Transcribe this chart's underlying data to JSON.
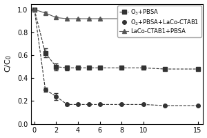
{
  "title": "",
  "xlabel": "",
  "ylabel": "C/C$_0$",
  "xlim": [
    -0.3,
    15.5
  ],
  "ylim": [
    0.0,
    1.05
  ],
  "yticks": [
    0.0,
    0.2,
    0.4,
    0.6,
    0.8,
    1.0
  ],
  "xticks": [
    0,
    2,
    4,
    6,
    8,
    10,
    15
  ],
  "series": [
    {
      "label": "O$_3$+PBSA",
      "x": [
        0,
        1,
        2,
        3,
        4,
        5,
        6,
        8,
        10,
        12,
        15
      ],
      "y": [
        1.0,
        0.62,
        0.5,
        0.49,
        0.49,
        0.49,
        0.49,
        0.49,
        0.49,
        0.48,
        0.48
      ],
      "yerr": [
        0.0,
        0.04,
        0.03,
        0.02,
        0.0,
        0.0,
        0.0,
        0.0,
        0.0,
        0.0,
        0.0
      ],
      "marker": "s",
      "linestyle": "--",
      "color": "#333333",
      "markersize": 4,
      "markerfacecolor": "#333333"
    },
    {
      "label": "O$_3$+PBSA+LaCo-CTAB1",
      "x": [
        0,
        1,
        2,
        3,
        4,
        5,
        6,
        8,
        10,
        12,
        15
      ],
      "y": [
        1.0,
        0.3,
        0.24,
        0.17,
        0.17,
        0.17,
        0.17,
        0.17,
        0.17,
        0.16,
        0.16
      ],
      "yerr": [
        0.0,
        0.02,
        0.03,
        0.01,
        0.0,
        0.0,
        0.0,
        0.0,
        0.0,
        0.0,
        0.0
      ],
      "marker": "o",
      "linestyle": "--",
      "color": "#333333",
      "markersize": 4,
      "markerfacecolor": "#333333"
    },
    {
      "label": "LaCo-CTAB1+PBSA",
      "x": [
        0,
        1,
        2,
        3,
        4,
        5,
        6,
        8,
        10,
        12,
        15
      ],
      "y": [
        1.0,
        0.97,
        0.93,
        0.92,
        0.92,
        0.92,
        0.92,
        0.92,
        0.92,
        0.92,
        0.92
      ],
      "yerr": [
        0.0,
        0.01,
        0.01,
        0.0,
        0.0,
        0.0,
        0.0,
        0.0,
        0.0,
        0.0,
        0.0
      ],
      "marker": "^",
      "linestyle": "-",
      "color": "#555555",
      "markersize": 5,
      "markerfacecolor": "#555555"
    }
  ],
  "legend_fontsize": 6.0,
  "axis_fontsize": 8,
  "tick_fontsize": 7,
  "background_color": "#ffffff",
  "figure_background": "#ffffff"
}
